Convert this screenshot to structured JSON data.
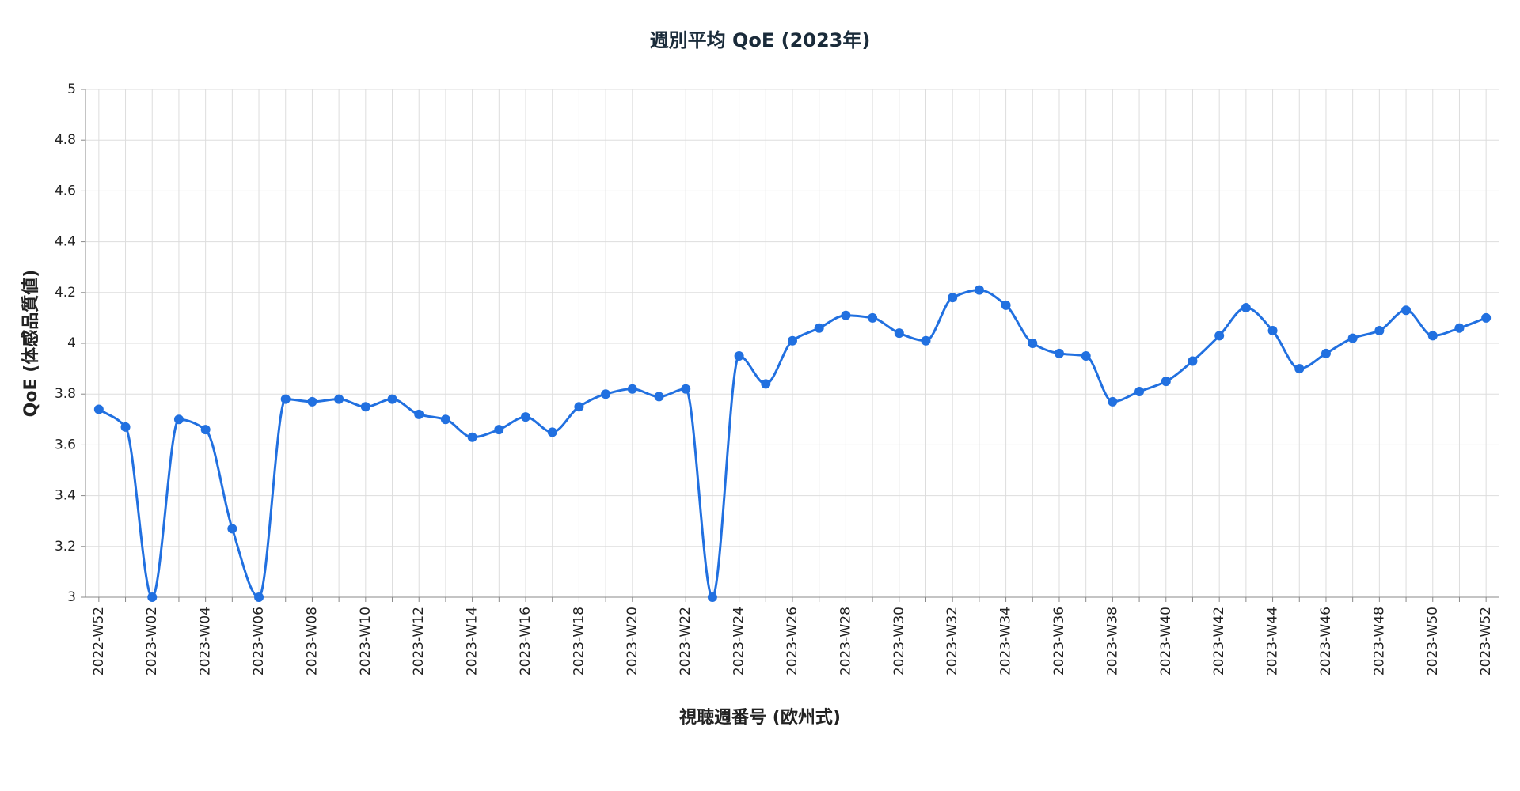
{
  "chart_data": {
    "type": "line",
    "title": "週別平均 QoE (2023年)",
    "x_label": "視聴週番号 (欧州式)",
    "y_label": "QoE (体感品質値)",
    "categories": [
      "2022-W52",
      null,
      "2023-W02",
      null,
      "2023-W04",
      null,
      "2023-W06",
      null,
      "2023-W08",
      null,
      "2023-W10",
      null,
      "2023-W12",
      null,
      "2023-W14",
      null,
      "2023-W16",
      null,
      "2023-W18",
      null,
      "2023-W20",
      null,
      "2023-W22",
      null,
      "2023-W24",
      null,
      "2023-W26",
      null,
      "2023-W28",
      null,
      "2023-W30",
      null,
      "2023-W32",
      null,
      "2023-W34",
      null,
      "2023-W36",
      null,
      "2023-W38",
      null,
      "2023-W40",
      null,
      "2023-W42",
      null,
      "2023-W44",
      null,
      "2023-W46",
      null,
      "2023-W48",
      null,
      "2023-W50",
      null,
      "2023-W52"
    ],
    "values": [
      3.74,
      3.67,
      3.0,
      3.7,
      3.66,
      3.27,
      3.0,
      3.78,
      3.77,
      3.78,
      3.75,
      3.78,
      3.72,
      3.7,
      3.63,
      3.66,
      3.71,
      3.65,
      3.75,
      3.8,
      3.82,
      3.79,
      3.82,
      3.0,
      3.95,
      3.84,
      4.01,
      4.06,
      4.11,
      4.1,
      4.04,
      4.01,
      4.18,
      4.21,
      4.15,
      4.0,
      3.96,
      3.95,
      3.77,
      3.81,
      3.85,
      3.93,
      4.03,
      4.14,
      4.05,
      3.9,
      3.96,
      4.02,
      4.05,
      4.13,
      4.03,
      4.06,
      4.1
    ],
    "color": "#2170e0",
    "ylim": [
      3,
      5
    ],
    "yticks": [
      3,
      3.2,
      3.4,
      3.6,
      3.8,
      4,
      4.2,
      4.4,
      4.6,
      4.8,
      5
    ],
    "grid": true
  }
}
